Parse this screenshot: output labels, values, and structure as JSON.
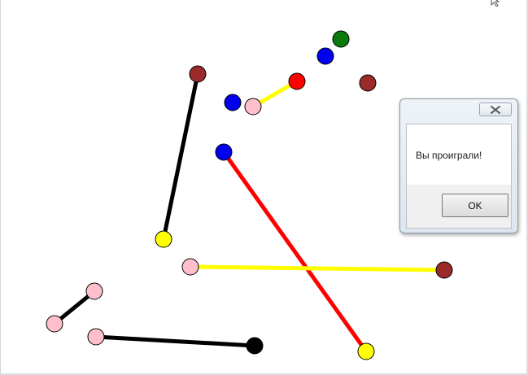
{
  "game": {
    "colors": {
      "brown": "#9b2a2a",
      "blue": "#0000ee",
      "green": "#0a7a0a",
      "red": "#ff0000",
      "pink": "#ffc0cb",
      "yellow": "#ffff00",
      "black": "#000000"
    },
    "links": [
      {
        "a": "pink",
        "b": "red",
        "line": "yellow"
      },
      {
        "a": "brown",
        "b": "yellow",
        "line": "black"
      },
      {
        "a": "blue",
        "b": "yellow",
        "line": "red"
      },
      {
        "a": "pink",
        "b": "brown",
        "line": "yellow"
      },
      {
        "a": "pink",
        "b": "pink",
        "line": "black"
      },
      {
        "a": "pink",
        "b": "black",
        "line": "black"
      }
    ],
    "loose_dots": [
      "green",
      "blue",
      "blue",
      "brown"
    ]
  },
  "dialog": {
    "message": "Вы проиграли!",
    "ok_label": "OK",
    "close_icon": "close-icon"
  }
}
